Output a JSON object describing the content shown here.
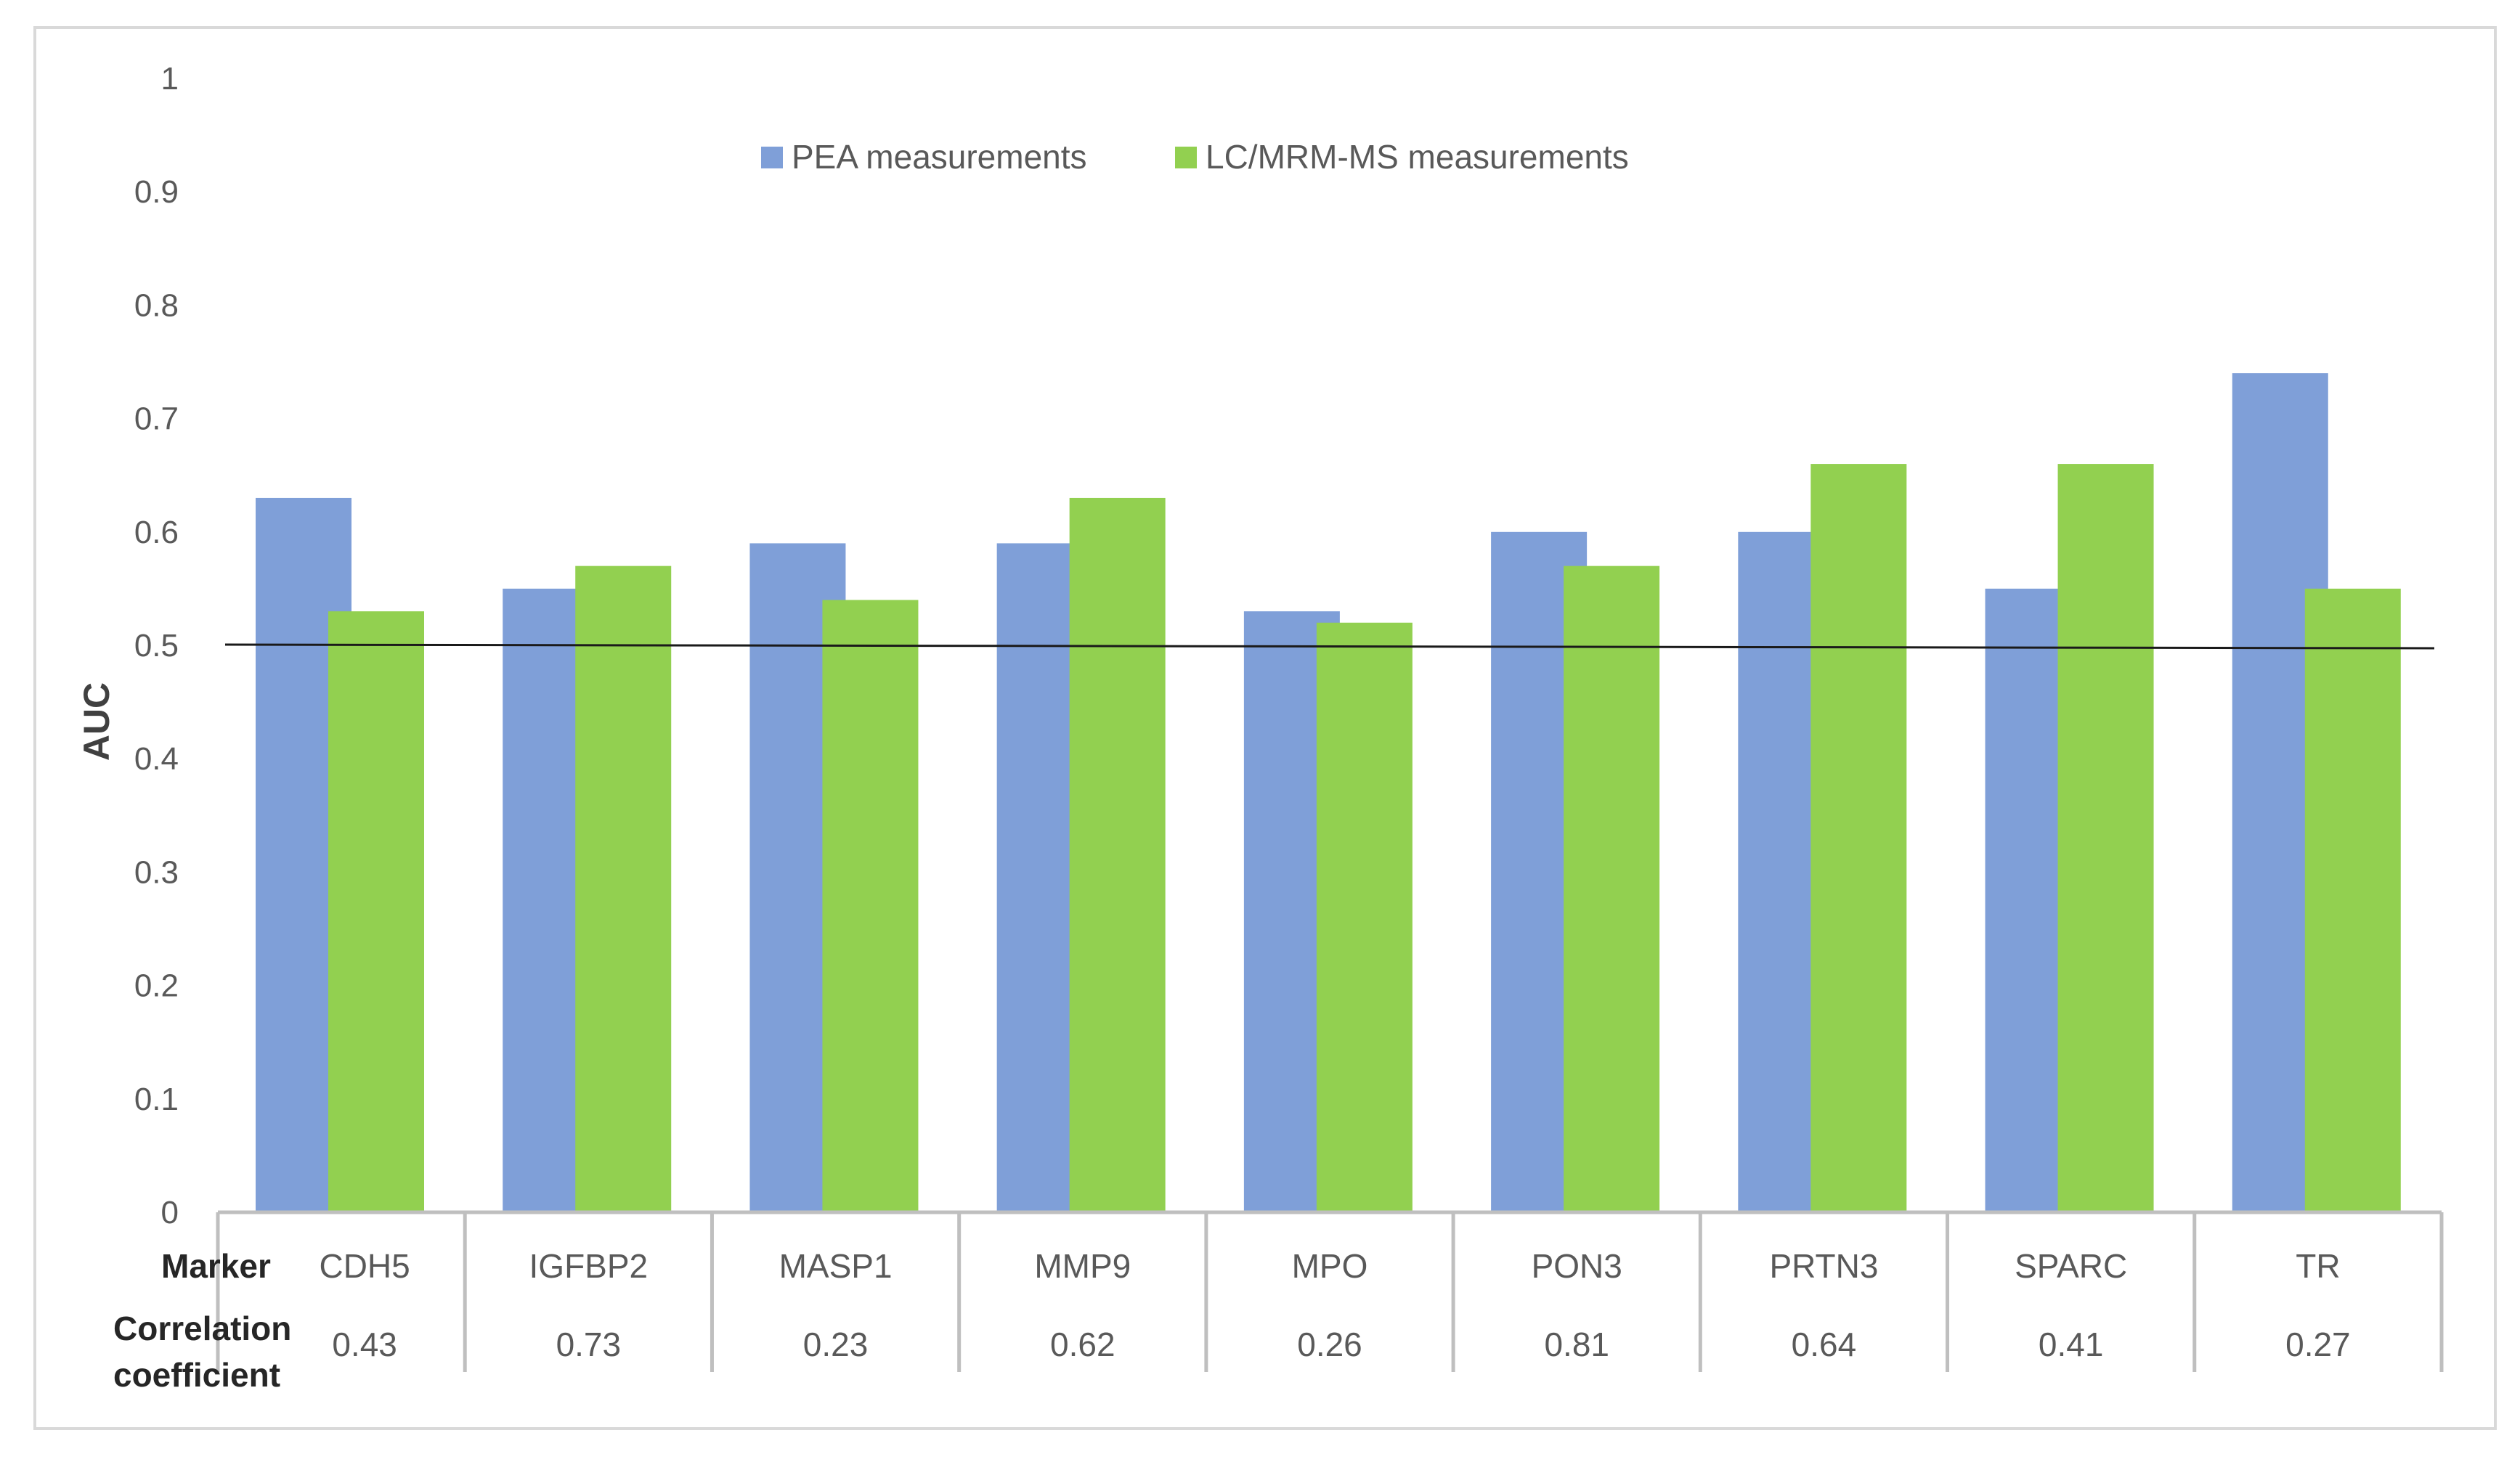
{
  "chart_data": {
    "type": "bar",
    "categories": [
      "CDH5",
      "IGFBP2",
      "MASP1",
      "MMP9",
      "MPO",
      "PON3",
      "PRTN3",
      "SPARC",
      "TR"
    ],
    "series": [
      {
        "name": "PEA measurements",
        "color": "#7f9fd8",
        "values": [
          0.63,
          0.55,
          0.59,
          0.59,
          0.53,
          0.6,
          0.6,
          0.55,
          0.74
        ]
      },
      {
        "name": "LC/MRM-MS measurements",
        "color": "#92d050",
        "values": [
          0.53,
          0.57,
          0.54,
          0.63,
          0.52,
          0.57,
          0.66,
          0.66,
          0.55
        ]
      }
    ],
    "ylabel": "AUC",
    "ylim": [
      0,
      1
    ],
    "yticks": [
      "0",
      "0.1",
      "0.2",
      "0.3",
      "0.4",
      "0.5",
      "0.6",
      "0.7",
      "0.8",
      "0.9",
      "1"
    ],
    "reference_line": 0.5,
    "legend_position": "top-center",
    "grid": false,
    "table_rows": [
      {
        "title": "Marker",
        "values": [
          "CDH5",
          "IGFBP2",
          "MASP1",
          "MMP9",
          "MPO",
          "PON3",
          "PRTN3",
          "SPARC",
          "TR"
        ]
      },
      {
        "title": "Correlation coefficient",
        "title_lines": [
          "Correlation",
          "coefficient"
        ],
        "values": [
          "0.43",
          "0.73",
          "0.23",
          "0.62",
          "0.26",
          "0.81",
          "0.64",
          "0.41",
          "0.27"
        ]
      }
    ]
  }
}
